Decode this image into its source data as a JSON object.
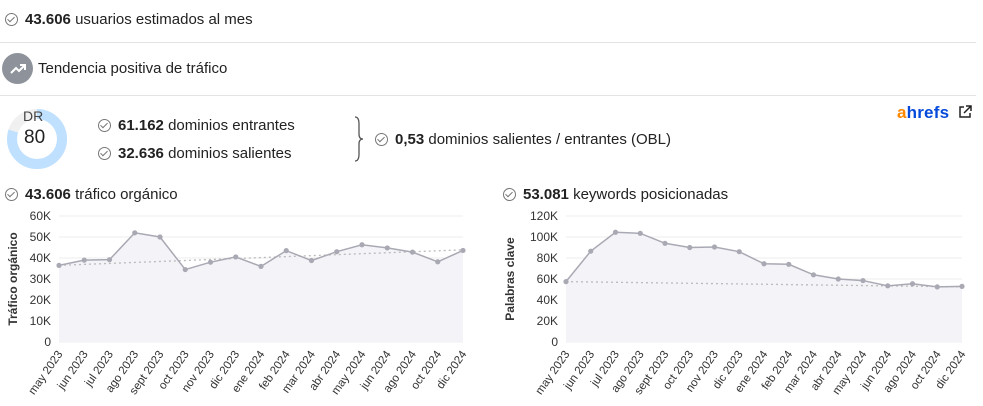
{
  "summary": {
    "monthly_users_value": "43.606",
    "monthly_users_label": "usuarios estimados al mes",
    "trend_label": "Tendencia positiva de tráfico"
  },
  "dr": {
    "label": "DR",
    "value": "80",
    "fraction": 0.8,
    "color": "#bfe0ff"
  },
  "domains": {
    "incoming_value": "61.162",
    "incoming_label": "dominios entrantes",
    "outgoing_value": "32.636",
    "outgoing_label": "dominios salientes",
    "obl_value": "0,53",
    "obl_label": "dominios salientes / entrantes (OBL)"
  },
  "brand": {
    "name_accent": "a",
    "name_rest": "hrefs",
    "external_icon": "external-link-icon"
  },
  "traffic": {
    "value": "43.606",
    "label": "tráfico orgánico"
  },
  "keywords": {
    "value": "53.081",
    "label": "keywords posicionadas"
  },
  "chart_data": [
    {
      "type": "line",
      "ylabel": "Tráfico orgánico",
      "ylim": [
        0,
        60000
      ],
      "yticks": [
        "0",
        "10K",
        "20K",
        "30K",
        "40K",
        "50K",
        "60K"
      ],
      "categories": [
        "may 2023",
        "jun 2023",
        "jul 2023",
        "ago 2023",
        "sept 2023",
        "oct 2023",
        "nov 2023",
        "dic 2023",
        "ene 2024",
        "feb 2024",
        "mar 2024",
        "abr 2024",
        "may 2024",
        "jun 2024",
        "ago 2024",
        "oct 2024",
        "dic 2024"
      ],
      "values": [
        36500,
        39000,
        39200,
        52000,
        50000,
        34500,
        38000,
        40500,
        36000,
        43500,
        38800,
        43000,
        46300,
        44800,
        42800,
        38200,
        43600
      ],
      "trend": [
        36500,
        43900
      ],
      "grid": true
    },
    {
      "type": "line",
      "ylabel": "Palabras clave",
      "ylim": [
        0,
        120000
      ],
      "yticks": [
        "0",
        "20K",
        "40K",
        "60K",
        "80K",
        "100K",
        "120K"
      ],
      "categories": [
        "may 2023",
        "jun 2023",
        "jul 2023",
        "ago 2023",
        "sept 2023",
        "oct 2023",
        "nov 2023",
        "dic 2023",
        "ene 2024",
        "feb 2024",
        "mar 2024",
        "abr 2024",
        "may 2024",
        "jun 2024",
        "ago 2024",
        "oct 2024",
        "dic 2024"
      ],
      "values": [
        57500,
        86500,
        104500,
        103500,
        94000,
        90000,
        90500,
        86000,
        74500,
        74000,
        64000,
        60000,
        58500,
        53500,
        55500,
        52500,
        53000
      ],
      "trend": [
        57500,
        52500
      ],
      "grid": true
    }
  ]
}
